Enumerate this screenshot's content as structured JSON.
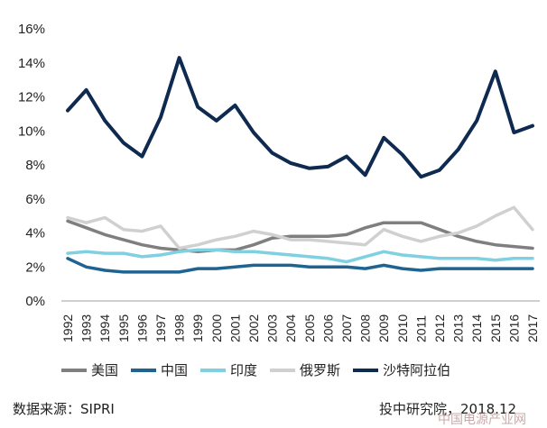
{
  "chart_data": {
    "type": "line",
    "x": [
      "1992",
      "1993",
      "1994",
      "1995",
      "1996",
      "1997",
      "1998",
      "1999",
      "2000",
      "2001",
      "2002",
      "2003",
      "2004",
      "2005",
      "2006",
      "2007",
      "2008",
      "2009",
      "2010",
      "2011",
      "2012",
      "2013",
      "2014",
      "2015",
      "2016",
      "2017"
    ],
    "ylim": [
      0,
      16
    ],
    "yticks": [
      "0%",
      "2%",
      "4%",
      "6%",
      "8%",
      "10%",
      "12%",
      "14%",
      "16%"
    ],
    "ytick_values": [
      0,
      2,
      4,
      6,
      8,
      10,
      12,
      14,
      16
    ],
    "series": [
      {
        "name": "美国",
        "color": "#7f7f7f",
        "values": [
          4.7,
          4.3,
          3.9,
          3.6,
          3.3,
          3.1,
          3.0,
          2.9,
          3.0,
          3.0,
          3.3,
          3.7,
          3.8,
          3.8,
          3.8,
          3.9,
          4.3,
          4.6,
          4.6,
          4.6,
          4.2,
          3.8,
          3.5,
          3.3,
          3.2,
          3.1
        ]
      },
      {
        "name": "中国",
        "color": "#1f6391",
        "values": [
          2.5,
          2.0,
          1.8,
          1.7,
          1.7,
          1.7,
          1.7,
          1.9,
          1.9,
          2.0,
          2.1,
          2.1,
          2.1,
          2.0,
          2.0,
          2.0,
          1.9,
          2.1,
          1.9,
          1.8,
          1.9,
          1.9,
          1.9,
          1.9,
          1.9,
          1.9
        ]
      },
      {
        "name": "印度",
        "color": "#7fd0e0",
        "values": [
          2.8,
          2.9,
          2.8,
          2.8,
          2.6,
          2.7,
          2.9,
          3.0,
          3.0,
          2.9,
          2.9,
          2.8,
          2.7,
          2.6,
          2.5,
          2.3,
          2.6,
          2.9,
          2.7,
          2.6,
          2.5,
          2.5,
          2.5,
          2.4,
          2.5,
          2.5
        ]
      },
      {
        "name": "俄罗斯",
        "color": "#d0d0d0",
        "values": [
          4.9,
          4.6,
          4.9,
          4.2,
          4.1,
          4.4,
          3.1,
          3.3,
          3.6,
          3.8,
          4.1,
          3.9,
          3.6,
          3.6,
          3.5,
          3.4,
          3.3,
          4.2,
          3.8,
          3.5,
          3.8,
          4.0,
          4.4,
          5.0,
          5.5,
          4.2
        ]
      },
      {
        "name": "沙特阿拉伯",
        "color": "#0f2a50",
        "values": [
          11.2,
          12.4,
          10.6,
          9.3,
          8.5,
          10.8,
          14.3,
          11.4,
          10.6,
          11.5,
          9.9,
          8.7,
          8.1,
          7.8,
          7.9,
          8.5,
          7.4,
          9.6,
          8.6,
          7.3,
          7.7,
          8.9,
          10.6,
          13.5,
          9.9,
          10.3
        ]
      }
    ]
  },
  "footer": {
    "source": "数据来源：SIPRI",
    "credit": "投中研究院，2018.12",
    "watermark": "中国电源产业网"
  }
}
